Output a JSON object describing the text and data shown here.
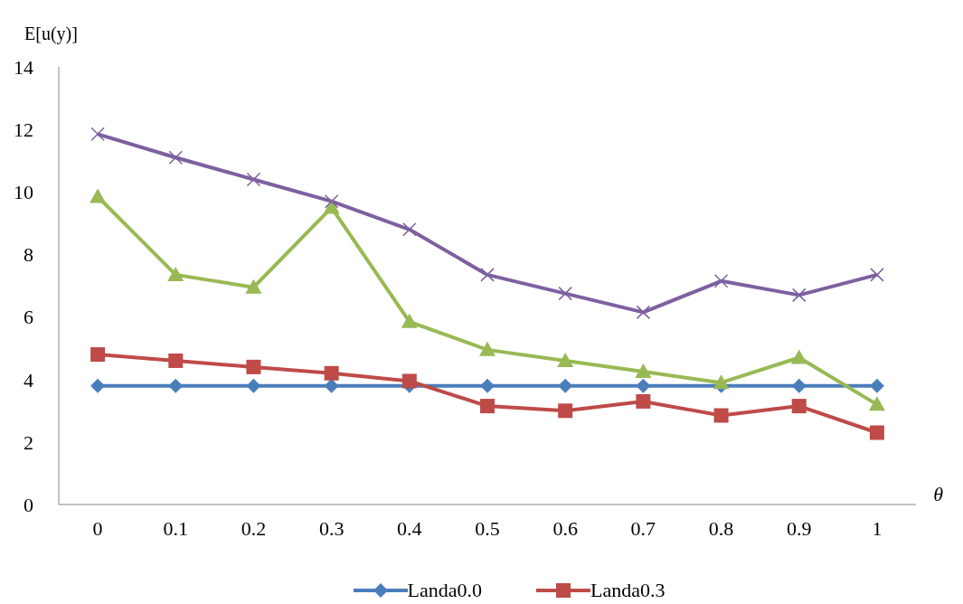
{
  "chart_data": {
    "type": "line",
    "ylabel": "E[u(y)]",
    "xlabel": "θ",
    "categories": [
      "0",
      "0.1",
      "0.2",
      "0.3",
      "0.4",
      "0.5",
      "0.6",
      "0.7",
      "0.8",
      "0.9",
      "1"
    ],
    "ylim": [
      0,
      14
    ],
    "yticks": [
      0,
      2,
      4,
      6,
      8,
      10,
      12,
      14
    ],
    "grid": false,
    "legend": "bottom",
    "line_style": "solid",
    "series": [
      {
        "name": "Landa0.0",
        "color": "#4a7ebb",
        "marker": "diamond",
        "values": [
          3.8,
          3.8,
          3.8,
          3.8,
          3.8,
          3.8,
          3.8,
          3.8,
          3.8,
          3.8,
          3.8
        ]
      },
      {
        "name": "Landa0.3",
        "color": "#be4b48",
        "marker": "square",
        "values": [
          4.8,
          4.6,
          4.4,
          4.2,
          3.95,
          3.15,
          3,
          3.3,
          2.85,
          3.15,
          2.3
        ]
      },
      {
        "color": "#98b954",
        "marker": "triangle",
        "values": [
          9.85,
          7.35,
          6.95,
          9.5,
          5.85,
          4.95,
          4.6,
          4.25,
          3.9,
          4.7,
          3.2
        ]
      },
      {
        "color": "#7d60a0",
        "marker": "cross",
        "values": [
          11.85,
          11.1,
          10.4,
          9.7,
          8.8,
          7.35,
          6.75,
          6.15,
          7.15,
          6.7,
          7.35
        ]
      }
    ]
  }
}
